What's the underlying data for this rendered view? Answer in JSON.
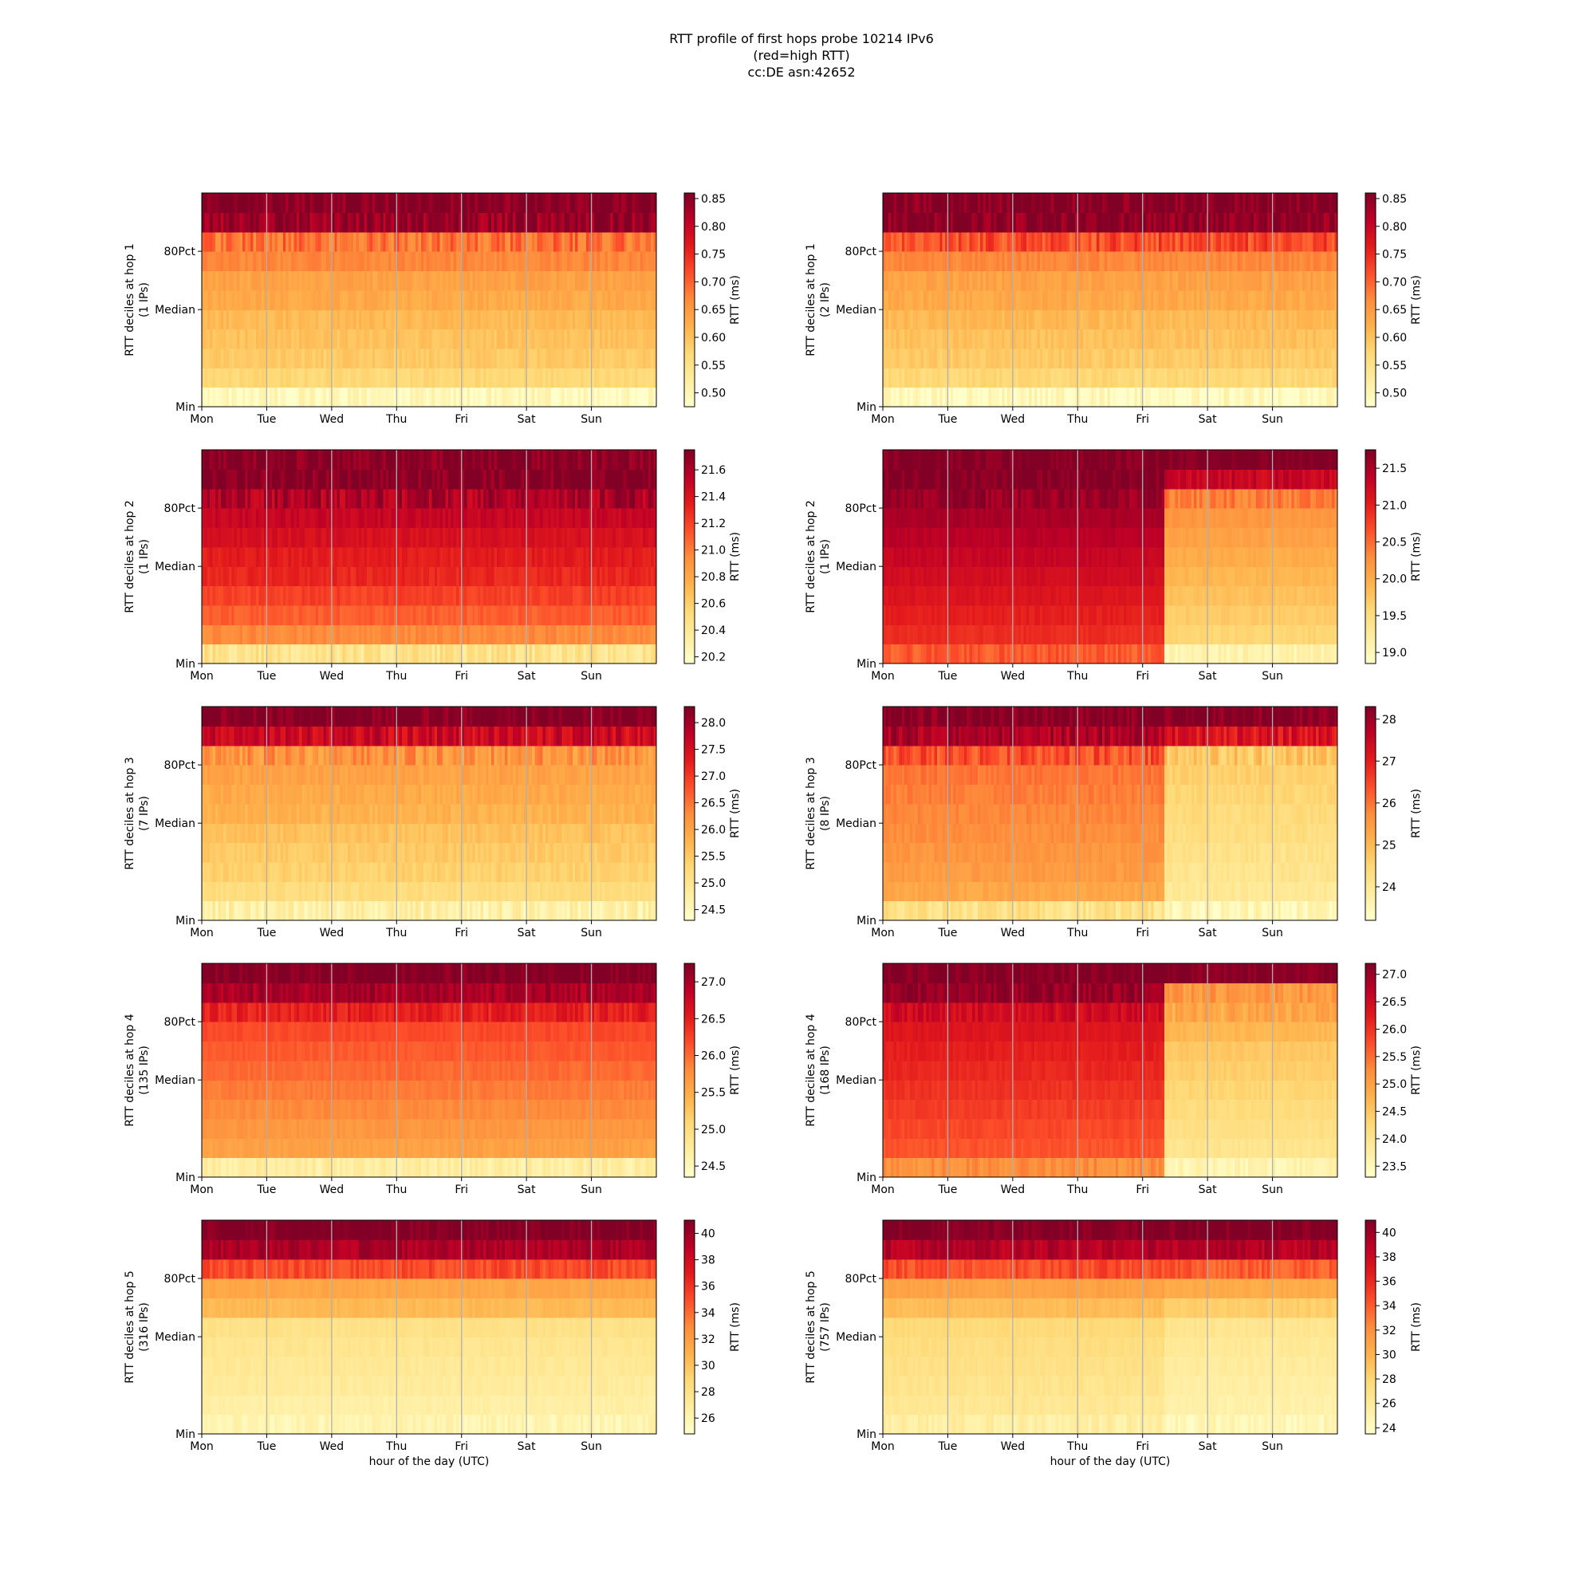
{
  "figure": {
    "title_lines": [
      "RTT profile of first hops probe 10214 IPv6",
      "(red=high RTT)",
      "cc:DE asn:42652"
    ]
  },
  "chart_data": [
    {
      "type": "heatmap",
      "hop": 1,
      "column": "left",
      "ylabel_lines": [
        "RTT deciles at hop 1",
        "(1 IPs)"
      ],
      "xlabel": "",
      "x_ticks": [
        "Mon",
        "Tue",
        "Wed",
        "Thu",
        "Fri",
        "Sat",
        "Sun"
      ],
      "y_ticks": [
        "80Pct",
        "Median",
        "Min"
      ],
      "colorbar": {
        "label": "RTT (ms)",
        "min": 0.475,
        "max": 0.86,
        "ticks": [
          0.5,
          0.55,
          0.6,
          0.65,
          0.7,
          0.75,
          0.8,
          0.85
        ],
        "tick_decimals": 2
      },
      "decile_values": [
        0.49,
        0.57,
        0.59,
        0.6,
        0.61,
        0.63,
        0.64,
        0.67,
        0.69,
        0.84,
        0.86
      ],
      "noise": 0.012,
      "regime_change": null
    },
    {
      "type": "heatmap",
      "hop": 1,
      "column": "right",
      "ylabel_lines": [
        "RTT deciles at hop 1",
        "(2 IPs)"
      ],
      "xlabel": "",
      "x_ticks": [
        "Mon",
        "Tue",
        "Wed",
        "Thu",
        "Fri",
        "Sat",
        "Sun"
      ],
      "y_ticks": [
        "80Pct",
        "Median",
        "Min"
      ],
      "colorbar": {
        "label": "RTT (ms)",
        "min": 0.475,
        "max": 0.86,
        "ticks": [
          0.5,
          0.55,
          0.6,
          0.65,
          0.7,
          0.75,
          0.8,
          0.85
        ],
        "tick_decimals": 2
      },
      "decile_values": [
        0.49,
        0.57,
        0.59,
        0.6,
        0.61,
        0.63,
        0.64,
        0.67,
        0.72,
        0.85,
        0.86
      ],
      "noise": 0.012,
      "regime_change": null
    },
    {
      "type": "heatmap",
      "hop": 2,
      "column": "left",
      "ylabel_lines": [
        "RTT deciles at hop 2",
        "(1 IPs)"
      ],
      "xlabel": "",
      "x_ticks": [
        "Mon",
        "Tue",
        "Wed",
        "Thu",
        "Fri",
        "Sat",
        "Sun"
      ],
      "y_ticks": [
        "80Pct",
        "Median",
        "Min"
      ],
      "colorbar": {
        "label": "RTT (ms)",
        "min": 20.15,
        "max": 21.75,
        "ticks": [
          20.2,
          20.4,
          20.6,
          20.8,
          21.0,
          21.2,
          21.4,
          21.6
        ],
        "tick_decimals": 1
      },
      "decile_values": [
        20.45,
        20.95,
        21.1,
        21.2,
        21.3,
        21.35,
        21.42,
        21.5,
        21.6,
        21.75,
        21.75
      ],
      "noise": 0.05,
      "regime_change": null
    },
    {
      "type": "heatmap",
      "hop": 2,
      "column": "right",
      "ylabel_lines": [
        "RTT deciles at hop 2",
        "(1 IPs)"
      ],
      "xlabel": "",
      "x_ticks": [
        "Mon",
        "Tue",
        "Wed",
        "Thu",
        "Fri",
        "Sat",
        "Sun"
      ],
      "y_ticks": [
        "80Pct",
        "Median",
        "Min"
      ],
      "colorbar": {
        "label": "RTT (ms)",
        "min": 18.85,
        "max": 21.75,
        "ticks": [
          19.0,
          19.5,
          20.0,
          20.5,
          21.0,
          21.5
        ],
        "tick_decimals": 1
      },
      "decile_values": [
        20.6,
        20.9,
        21.0,
        21.1,
        21.2,
        21.3,
        21.4,
        21.5,
        21.6,
        21.75,
        21.75
      ],
      "noise": 0.06,
      "regime_change": {
        "day": 4.3,
        "decile_values": [
          19.1,
          19.6,
          19.7,
          19.8,
          19.9,
          20.0,
          20.1,
          20.2,
          20.4,
          21.3,
          21.75
        ]
      }
    },
    {
      "type": "heatmap",
      "hop": 3,
      "column": "left",
      "ylabel_lines": [
        "RTT deciles at hop 3",
        "(7 IPs)"
      ],
      "xlabel": "",
      "x_ticks": [
        "Mon",
        "Tue",
        "Wed",
        "Thu",
        "Fri",
        "Sat",
        "Sun"
      ],
      "y_ticks": [
        "80Pct",
        "Median",
        "Min"
      ],
      "colorbar": {
        "label": "RTT (ms)",
        "min": 24.3,
        "max": 28.3,
        "ticks": [
          24.5,
          25.0,
          25.5,
          26.0,
          26.5,
          27.0,
          27.5,
          28.0
        ],
        "tick_decimals": 1
      },
      "decile_values": [
        24.7,
        25.2,
        25.4,
        25.5,
        25.6,
        25.8,
        25.9,
        26.0,
        26.2,
        27.6,
        28.3
      ],
      "noise": 0.12,
      "regime_change": null
    },
    {
      "type": "heatmap",
      "hop": 3,
      "column": "right",
      "ylabel_lines": [
        "RTT deciles at hop 3",
        "(8 IPs)"
      ],
      "xlabel": "",
      "x_ticks": [
        "Mon",
        "Tue",
        "Wed",
        "Thu",
        "Fri",
        "Sat",
        "Sun"
      ],
      "y_ticks": [
        "80Pct",
        "Median",
        "Min"
      ],
      "colorbar": {
        "label": "RTT (ms)",
        "min": 23.2,
        "max": 28.3,
        "ticks": [
          24,
          25,
          26,
          27,
          28
        ],
        "tick_decimals": 0
      },
      "decile_values": [
        24.2,
        25.3,
        25.5,
        25.6,
        25.7,
        25.8,
        25.9,
        26.0,
        26.4,
        27.8,
        28.3
      ],
      "noise": 0.15,
      "regime_change": {
        "day": 4.3,
        "decile_values": [
          23.5,
          24.0,
          24.1,
          24.2,
          24.3,
          24.4,
          24.5,
          24.6,
          24.8,
          27.2,
          28.3
        ]
      }
    },
    {
      "type": "heatmap",
      "hop": 4,
      "column": "left",
      "ylabel_lines": [
        "RTT deciles at hop 4",
        "(135 IPs)"
      ],
      "xlabel": "",
      "x_ticks": [
        "Mon",
        "Tue",
        "Wed",
        "Thu",
        "Fri",
        "Sat",
        "Sun"
      ],
      "y_ticks": [
        "80Pct",
        "Median",
        "Min"
      ],
      "colorbar": {
        "label": "RTT (ms)",
        "min": 24.35,
        "max": 27.25,
        "ticks": [
          24.5,
          25.0,
          25.5,
          26.0,
          26.5,
          27.0
        ],
        "tick_decimals": 1
      },
      "decile_values": [
        24.7,
        25.6,
        25.7,
        25.8,
        25.9,
        26.0,
        26.1,
        26.2,
        26.5,
        27.0,
        27.25
      ],
      "noise": 0.06,
      "regime_change": null
    },
    {
      "type": "heatmap",
      "hop": 4,
      "column": "right",
      "ylabel_lines": [
        "RTT deciles at hop 4",
        "(168 IPs)"
      ],
      "xlabel": "",
      "x_ticks": [
        "Mon",
        "Tue",
        "Wed",
        "Thu",
        "Fri",
        "Sat",
        "Sun"
      ],
      "y_ticks": [
        "80Pct",
        "Median",
        "Min"
      ],
      "colorbar": {
        "label": "RTT (ms)",
        "min": 23.3,
        "max": 27.2,
        "ticks": [
          23.5,
          24.0,
          24.5,
          25.0,
          25.5,
          26.0,
          26.5,
          27.0
        ],
        "tick_decimals": 1
      },
      "decile_values": [
        25.2,
        25.7,
        25.8,
        25.9,
        26.0,
        26.1,
        26.2,
        26.3,
        26.5,
        27.0,
        27.2
      ],
      "noise": 0.08,
      "regime_change": {
        "day": 4.3,
        "decile_values": [
          23.6,
          24.0,
          24.1,
          24.2,
          24.3,
          24.4,
          24.5,
          24.7,
          24.9,
          25.1,
          27.2
        ]
      }
    },
    {
      "type": "heatmap",
      "hop": 5,
      "column": "left",
      "ylabel_lines": [
        "RTT deciles at hop 5",
        "(316 IPs)"
      ],
      "xlabel": "hour of the day (UTC)",
      "x_ticks": [
        "Mon",
        "Tue",
        "Wed",
        "Thu",
        "Fri",
        "Sat",
        "Sun"
      ],
      "y_ticks": [
        "80Pct",
        "Median",
        "Min"
      ],
      "colorbar": {
        "label": "RTT (ms)",
        "min": 24.8,
        "max": 41,
        "ticks": [
          26,
          28,
          30,
          32,
          34,
          36,
          38,
          40
        ],
        "tick_decimals": 0
      },
      "decile_values": [
        26.0,
        26.6,
        27.0,
        27.3,
        27.6,
        28.0,
        30.5,
        31.5,
        35.0,
        39.5,
        41.0
      ],
      "noise": 0.3,
      "regime_change": null
    },
    {
      "type": "heatmap",
      "hop": 5,
      "column": "right",
      "ylabel_lines": [
        "RTT deciles at hop 5",
        "(757 IPs)"
      ],
      "xlabel": "hour of the day (UTC)",
      "x_ticks": [
        "Mon",
        "Tue",
        "Wed",
        "Thu",
        "Fri",
        "Sat",
        "Sun"
      ],
      "y_ticks": [
        "80Pct",
        "Median",
        "Min"
      ],
      "colorbar": {
        "label": "RTT (ms)",
        "min": 23.5,
        "max": 41,
        "ticks": [
          24,
          26,
          28,
          30,
          32,
          34,
          36,
          38,
          40
        ],
        "tick_decimals": 0
      },
      "decile_values": [
        25.5,
        26.3,
        26.7,
        27.0,
        27.3,
        27.7,
        29.5,
        31.0,
        34.5,
        39.0,
        41.0
      ],
      "noise": 0.35,
      "regime_change": {
        "day": 4.3,
        "decile_values": [
          24.5,
          25.2,
          25.5,
          25.8,
          26.1,
          26.5,
          28.5,
          30.5,
          34.0,
          39.0,
          41.0
        ]
      }
    }
  ]
}
